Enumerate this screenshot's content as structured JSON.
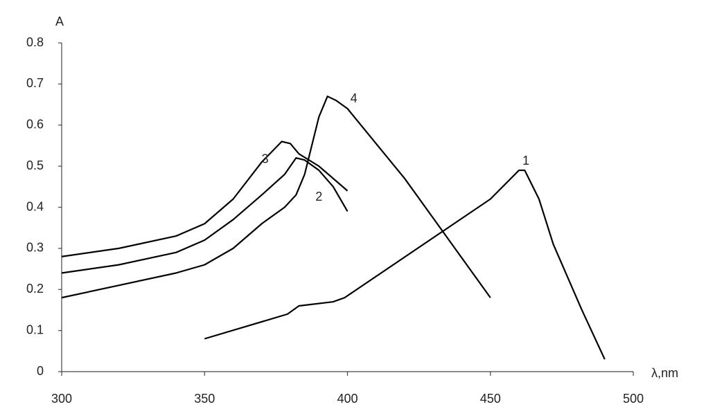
{
  "chart_data": {
    "type": "line",
    "y_label": "A",
    "x_label": "λ,nm",
    "xlim": [
      300,
      500
    ],
    "xticks": [
      300,
      350,
      400,
      450,
      500
    ],
    "ylim": [
      0,
      0.8
    ],
    "yticks": [
      0,
      0.1,
      0.2,
      0.3,
      0.4,
      0.5,
      0.6,
      0.7,
      0.8
    ],
    "grid": false,
    "series": [
      {
        "name": "1",
        "color": "#000000",
        "x": [
          350,
          379,
          383,
          395,
          399,
          450,
          460,
          462,
          467,
          472,
          482,
          490
        ],
        "values": [
          0.08,
          0.14,
          0.16,
          0.17,
          0.18,
          0.42,
          0.49,
          0.49,
          0.42,
          0.31,
          0.15,
          0.03
        ]
      },
      {
        "name": "2",
        "color": "#000000",
        "x": [
          300,
          320,
          340,
          350,
          360,
          370,
          378,
          382,
          385,
          390,
          395,
          400
        ],
        "values": [
          0.24,
          0.26,
          0.29,
          0.32,
          0.37,
          0.43,
          0.48,
          0.52,
          0.515,
          0.49,
          0.45,
          0.39
        ]
      },
      {
        "name": "3",
        "color": "#000000",
        "x": [
          300,
          320,
          340,
          350,
          360,
          370,
          377,
          380,
          383,
          390,
          400
        ],
        "values": [
          0.28,
          0.3,
          0.33,
          0.36,
          0.42,
          0.51,
          0.56,
          0.555,
          0.53,
          0.5,
          0.44
        ]
      },
      {
        "name": "4",
        "color": "#000000",
        "x": [
          300,
          320,
          340,
          350,
          360,
          370,
          378,
          382,
          385,
          390,
          393,
          396,
          400,
          420,
          450
        ],
        "values": [
          0.18,
          0.21,
          0.24,
          0.26,
          0.3,
          0.36,
          0.4,
          0.43,
          0.48,
          0.62,
          0.67,
          0.66,
          0.64,
          0.47,
          0.18
        ]
      }
    ]
  }
}
